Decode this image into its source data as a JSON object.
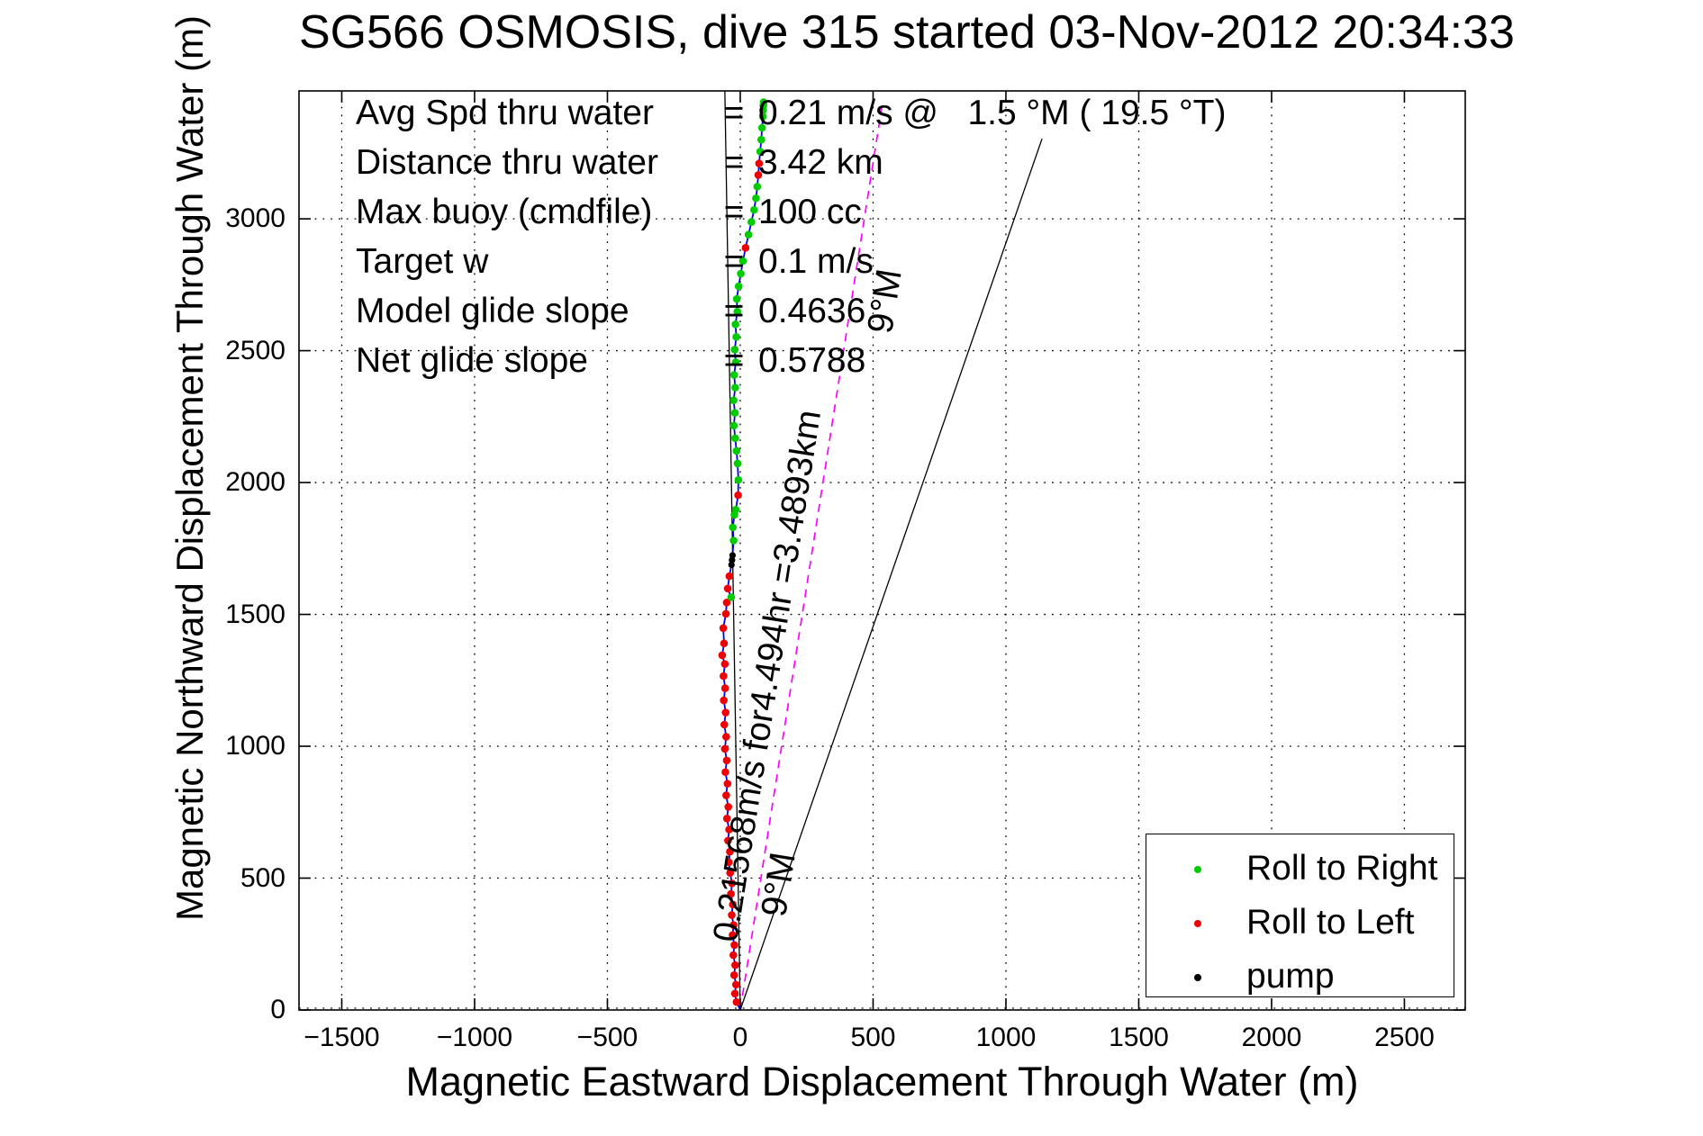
{
  "chart_data": {
    "type": "scatter",
    "title": "SG566 OSMOSIS, dive 315 started 03-Nov-2012 20:34:33",
    "xlabel": "Magnetic Eastward Displacement Through Water (m)",
    "ylabel": "Magnetic Northward Displacement Through Water (m)",
    "xlim": [
      -1661,
      2729
    ],
    "ylim": [
      0,
      3485
    ],
    "x_ticks": [
      -1500,
      -1000,
      -500,
      0,
      500,
      1000,
      1500,
      2000,
      2500
    ],
    "y_ticks": [
      0,
      500,
      1000,
      1500,
      2000,
      2500,
      3000
    ],
    "grid": true,
    "colors": {
      "track": "#0000ee",
      "roll_right": "#00cc00",
      "roll_left": "#ee0000",
      "pump": "#000000",
      "heading_line": "#ff00ff",
      "reference_line": "#000000"
    },
    "annotations": {
      "rows": [
        {
          "label": "Avg Spd thru water",
          "eq": "=",
          "value": "0.21 m/s @   1.5 °M ( 19.5 °T)"
        },
        {
          "label": "Distance thru water",
          "eq": "=",
          "value": "3.42 km"
        },
        {
          "label": "Max buoy (cmdfile)",
          "eq": "=",
          "value": "100 cc"
        },
        {
          "label": "Target w",
          "eq": "=",
          "value": "0.1 m/s"
        },
        {
          "label": "Model glide slope",
          "eq": "=",
          "value": "0.4636"
        },
        {
          "label": "Net glide slope",
          "eq": "=",
          "value": "0.5788"
        }
      ]
    },
    "ref_lines": [
      {
        "name": "commanded-heading-9m-line",
        "style": "dashed",
        "color": "#ff00ff",
        "from": [
          0,
          0
        ],
        "to": [
          536,
          3444
        ]
      },
      {
        "name": "true-heading-line",
        "style": "solid",
        "color": "#000000",
        "from": [
          0,
          0
        ],
        "to": [
          1136,
          3304
        ]
      },
      {
        "name": "magnetic-north-reference-line",
        "style": "solid",
        "color": "#000000",
        "from": [
          0,
          0
        ],
        "to": [
          -58,
          3485
        ]
      }
    ],
    "rotated_labels": [
      {
        "name": "speed-distance-annotation",
        "text": "0.21568m/s for4.494hr =3.4893km",
        "at": [
          -14,
          253
        ],
        "rotate": -81,
        "size": 39
      },
      {
        "name": "heading-label-lower",
        "text": "9°M",
        "at": [
          169,
          348
        ],
        "rotate": -81,
        "size": 40
      },
      {
        "name": "heading-label-upper",
        "text": "9°M",
        "at": [
          569,
          2560
        ],
        "rotate": -81,
        "size": 40
      }
    ],
    "legend": {
      "position": "lower-right",
      "entries": [
        {
          "label": "Roll to Right",
          "marker": "dot",
          "color": "#00cc00"
        },
        {
          "label": "Roll to Left",
          "marker": "dot",
          "color": "#ee0000"
        },
        {
          "label": "pump",
          "marker": "dot",
          "color": "#000000"
        }
      ]
    },
    "track": {
      "name": "through-water-track",
      "marker_key": {
        "l": "roll_left",
        "r": "roll_right",
        "p": "pump"
      },
      "points": [
        [
          0,
          0,
          ""
        ],
        [
          -14,
          30,
          "l"
        ],
        [
          -20,
          62,
          "l"
        ],
        [
          -16,
          96,
          "l"
        ],
        [
          -23,
          132,
          "l"
        ],
        [
          -19,
          170,
          "l"
        ],
        [
          -26,
          208,
          "l"
        ],
        [
          -22,
          246,
          "l"
        ],
        [
          -29,
          284,
          "l"
        ],
        [
          -25,
          322,
          "l"
        ],
        [
          -32,
          360,
          "l"
        ],
        [
          -28,
          400,
          "l"
        ],
        [
          -35,
          440,
          "l"
        ],
        [
          -31,
          480,
          "l"
        ],
        [
          -38,
          520,
          "l"
        ],
        [
          -43,
          560,
          "l"
        ],
        [
          -39,
          600,
          "l"
        ],
        [
          -46,
          642,
          "l"
        ],
        [
          -42,
          684,
          "l"
        ],
        [
          -50,
          726,
          "l"
        ],
        [
          -45,
          770,
          "l"
        ],
        [
          -53,
          814,
          "l"
        ],
        [
          -48,
          858,
          "l"
        ],
        [
          -56,
          902,
          "l"
        ],
        [
          -51,
          946,
          "l"
        ],
        [
          -58,
          990,
          "l"
        ],
        [
          -53,
          1036,
          "l"
        ],
        [
          -60,
          1082,
          "l"
        ],
        [
          -55,
          1128,
          "l"
        ],
        [
          -62,
          1174,
          "l"
        ],
        [
          -57,
          1220,
          "l"
        ],
        [
          -63,
          1266,
          "l"
        ],
        [
          -58,
          1312,
          "l"
        ],
        [
          -68,
          1345,
          "l"
        ],
        [
          -61,
          1390,
          "l"
        ],
        [
          -64,
          1448,
          "l"
        ],
        [
          -54,
          1502,
          "l"
        ],
        [
          -51,
          1545,
          "l"
        ],
        [
          -34,
          1565,
          "r"
        ],
        [
          -47,
          1598,
          "l"
        ],
        [
          -41,
          1645,
          "l"
        ],
        [
          -33,
          1688,
          "p"
        ],
        [
          -31,
          1706,
          "p"
        ],
        [
          -29,
          1724,
          "p"
        ],
        [
          -25,
          1780,
          "r"
        ],
        [
          -28,
          1830,
          "r"
        ],
        [
          -22,
          1878,
          "r"
        ],
        [
          -17,
          1897,
          "r"
        ],
        [
          -8,
          1952,
          "l"
        ],
        [
          -7,
          2010,
          "r"
        ],
        [
          -10,
          2072,
          "r"
        ],
        [
          -14,
          2120,
          "r"
        ],
        [
          -19,
          2168,
          "r"
        ],
        [
          -24,
          2216,
          "r"
        ],
        [
          -20,
          2264,
          "r"
        ],
        [
          -25,
          2312,
          "r"
        ],
        [
          -19,
          2360,
          "r"
        ],
        [
          -23,
          2408,
          "r"
        ],
        [
          -17,
          2456,
          "r"
        ],
        [
          -21,
          2504,
          "r"
        ],
        [
          -15,
          2552,
          "r"
        ],
        [
          -18,
          2600,
          "r"
        ],
        [
          -11,
          2648,
          "r"
        ],
        [
          -13,
          2696,
          "r"
        ],
        [
          -6,
          2744,
          "r"
        ],
        [
          2,
          2792,
          "r"
        ],
        [
          10,
          2840,
          "r"
        ],
        [
          20,
          2890,
          "l"
        ],
        [
          31,
          2940,
          "r"
        ],
        [
          42,
          2988,
          "r"
        ],
        [
          52,
          3034,
          "r"
        ],
        [
          59,
          3078,
          "r"
        ],
        [
          64,
          3122,
          "r"
        ],
        [
          68,
          3166,
          "l"
        ],
        [
          71,
          3210,
          "l"
        ],
        [
          75,
          3255,
          "r"
        ],
        [
          79,
          3300,
          "r"
        ],
        [
          82,
          3345,
          "r"
        ],
        [
          85,
          3388,
          "r"
        ],
        [
          86,
          3412,
          "r"
        ],
        [
          87,
          3430,
          "r"
        ],
        [
          88,
          3442,
          "r"
        ]
      ]
    }
  }
}
